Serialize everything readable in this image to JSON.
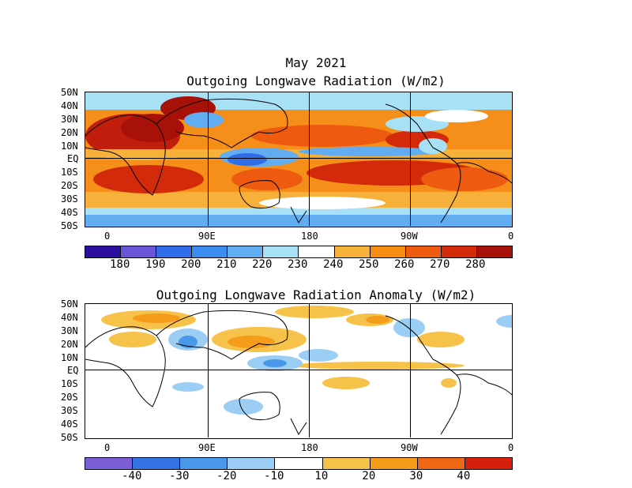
{
  "header": {
    "date": "May 2021"
  },
  "map1": {
    "title": "Outgoing Longwave Radiation (W/m2)",
    "lat_labels": [
      "50N",
      "40N",
      "30N",
      "20N",
      "10N",
      "EQ",
      "10S",
      "20S",
      "30S",
      "40S",
      "50S"
    ],
    "lon_labels": [
      "0",
      "90E",
      "180",
      "90W",
      "0"
    ],
    "colorbar_labels": [
      "180",
      "190",
      "200",
      "210",
      "220",
      "230",
      "240",
      "250",
      "260",
      "270",
      "280"
    ],
    "colorbar_colors": [
      "#2d0fa0",
      "#6a55d8",
      "#2f6ee8",
      "#3d8cf0",
      "#62acf2",
      "#a8e0f6",
      "#ffffff",
      "#f7b03a",
      "#f78c12",
      "#ee5b10",
      "#d22a0a",
      "#a8110a"
    ]
  },
  "map2": {
    "title": "Outgoing Longwave Radiation Anomaly (W/m2)",
    "lat_labels": [
      "50N",
      "40N",
      "30N",
      "20N",
      "10N",
      "EQ",
      "10S",
      "20S",
      "30S",
      "40S",
      "50S"
    ],
    "lon_labels": [
      "0",
      "90E",
      "180",
      "90W",
      "0"
    ],
    "colorbar_labels": [
      "-40",
      "-30",
      "-20",
      "-10",
      "10",
      "20",
      "30",
      "40"
    ],
    "colorbar_colors": [
      "#7a5fd8",
      "#3473e3",
      "#4a98ea",
      "#9ccef5",
      "#ffffff",
      "#f7c24a",
      "#f59c1a",
      "#ee6814",
      "#d6200c"
    ]
  }
}
